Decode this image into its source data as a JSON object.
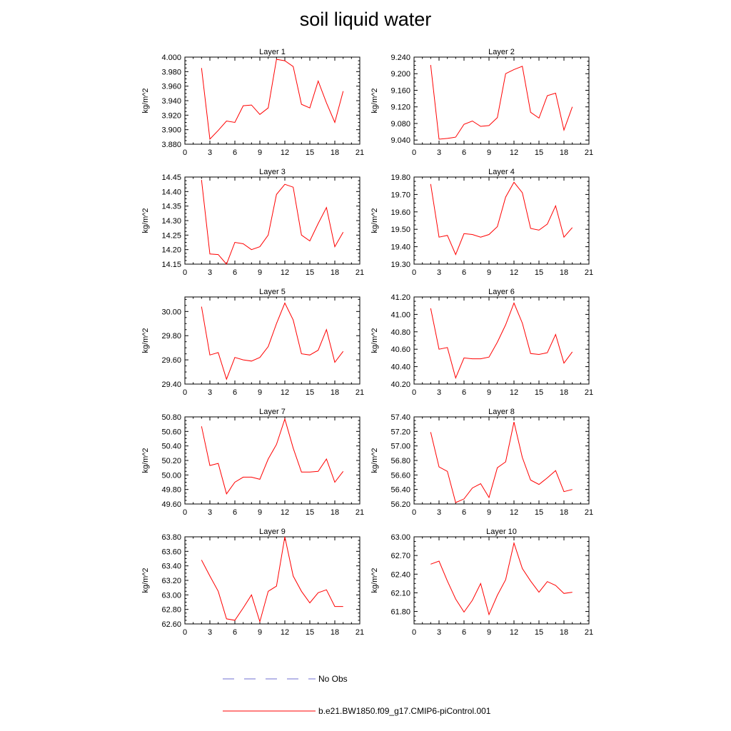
{
  "title": "soil liquid water",
  "legend": {
    "entries": [
      {
        "label": "No Obs",
        "color": "#6f6fd0",
        "style": "dashed"
      },
      {
        "label": "b.e21.BW1850.f09_g17.CMIP6-piControl.001",
        "color": "#ff0000",
        "style": "solid"
      }
    ]
  },
  "chart_data": [
    {
      "type": "line",
      "title": "Layer 1",
      "ylabel": "kg/m^2",
      "xlim": [
        0,
        21
      ],
      "xticks": [
        0,
        3,
        6,
        9,
        12,
        15,
        18,
        21
      ],
      "ylim": [
        3.88,
        4.0
      ],
      "yticks": [
        "3.880",
        "3.900",
        "3.920",
        "3.940",
        "3.960",
        "3.980",
        "4.000"
      ],
      "series": [
        {
          "name": "b.e21.BW1850.f09_g17.CMIP6-piControl.001",
          "color": "#ff0000",
          "x": [
            2,
            3,
            4,
            5,
            6,
            7,
            8,
            9,
            10,
            11,
            12,
            13,
            14,
            15,
            16,
            17,
            18,
            19
          ],
          "y": [
            3.985,
            3.887,
            3.899,
            3.912,
            3.91,
            3.933,
            3.934,
            3.921,
            3.93,
            3.997,
            3.995,
            3.987,
            3.935,
            3.93,
            3.967,
            3.937,
            3.91,
            3.953
          ]
        }
      ]
    },
    {
      "type": "line",
      "title": "Layer 2",
      "ylabel": "kg/m^2",
      "xlim": [
        0,
        21
      ],
      "xticks": [
        0,
        3,
        6,
        9,
        12,
        15,
        18,
        21
      ],
      "ylim": [
        9.03,
        9.24
      ],
      "yticks": [
        "9.040",
        "9.080",
        "9.120",
        "9.160",
        "9.200",
        "9.240"
      ],
      "series": [
        {
          "name": "b.e21.BW1850.f09_g17.CMIP6-piControl.001",
          "color": "#ff0000",
          "x": [
            2,
            3,
            4,
            5,
            6,
            7,
            8,
            9,
            10,
            11,
            12,
            13,
            14,
            15,
            16,
            17,
            18,
            19
          ],
          "y": [
            9.221,
            9.042,
            9.044,
            9.047,
            9.078,
            9.086,
            9.073,
            9.075,
            9.094,
            9.2,
            9.21,
            9.218,
            9.107,
            9.093,
            9.147,
            9.153,
            9.064,
            9.12
          ]
        }
      ]
    },
    {
      "type": "line",
      "title": "Layer 3",
      "ylabel": "kg/m^2",
      "xlim": [
        0,
        21
      ],
      "xticks": [
        0,
        3,
        6,
        9,
        12,
        15,
        18,
        21
      ],
      "ylim": [
        14.15,
        14.45
      ],
      "yticks": [
        "14.15",
        "14.20",
        "14.25",
        "14.30",
        "14.35",
        "14.40",
        "14.45"
      ],
      "series": [
        {
          "name": "b.e21.BW1850.f09_g17.CMIP6-piControl.001",
          "color": "#ff0000",
          "x": [
            2,
            3,
            4,
            5,
            6,
            7,
            8,
            9,
            10,
            11,
            12,
            13,
            14,
            15,
            16,
            17,
            18,
            19
          ],
          "y": [
            14.44,
            14.185,
            14.183,
            14.15,
            14.225,
            14.22,
            14.2,
            14.21,
            14.25,
            14.39,
            14.425,
            14.415,
            14.25,
            14.23,
            14.29,
            14.345,
            14.21,
            14.26
          ]
        }
      ]
    },
    {
      "type": "line",
      "title": "Layer 4",
      "ylabel": "kg/m^2",
      "xlim": [
        0,
        21
      ],
      "xticks": [
        0,
        3,
        6,
        9,
        12,
        15,
        18,
        21
      ],
      "ylim": [
        19.3,
        19.8
      ],
      "yticks": [
        "19.30",
        "19.40",
        "19.50",
        "19.60",
        "19.70",
        "19.80"
      ],
      "series": [
        {
          "name": "b.e21.BW1850.f09_g17.CMIP6-piControl.001",
          "color": "#ff0000",
          "x": [
            2,
            3,
            4,
            5,
            6,
            7,
            8,
            9,
            10,
            11,
            12,
            13,
            14,
            15,
            16,
            17,
            18,
            19
          ],
          "y": [
            19.76,
            19.455,
            19.465,
            19.355,
            19.475,
            19.47,
            19.455,
            19.47,
            19.515,
            19.685,
            19.77,
            19.71,
            19.505,
            19.495,
            19.53,
            19.635,
            19.455,
            19.51
          ]
        }
      ]
    },
    {
      "type": "line",
      "title": "Layer 5",
      "ylabel": "kg/m^2",
      "xlim": [
        0,
        21
      ],
      "xticks": [
        0,
        3,
        6,
        9,
        12,
        15,
        18,
        21
      ],
      "ylim": [
        29.4,
        30.12
      ],
      "yticks": [
        "29.40",
        "29.60",
        "29.80",
        "30.00"
      ],
      "series": [
        {
          "name": "b.e21.BW1850.f09_g17.CMIP6-piControl.001",
          "color": "#ff0000",
          "x": [
            2,
            3,
            4,
            5,
            6,
            7,
            8,
            9,
            10,
            11,
            12,
            13,
            14,
            15,
            16,
            17,
            18,
            19
          ],
          "y": [
            30.04,
            29.64,
            29.66,
            29.44,
            29.62,
            29.6,
            29.59,
            29.62,
            29.71,
            29.9,
            30.07,
            29.93,
            29.65,
            29.64,
            29.68,
            29.85,
            29.58,
            29.67
          ]
        }
      ]
    },
    {
      "type": "line",
      "title": "Layer 6",
      "ylabel": "kg/m^2",
      "xlim": [
        0,
        21
      ],
      "xticks": [
        0,
        3,
        6,
        9,
        12,
        15,
        18,
        21
      ],
      "ylim": [
        40.2,
        41.2
      ],
      "yticks": [
        "40.20",
        "40.40",
        "40.60",
        "40.80",
        "41.00",
        "41.20"
      ],
      "series": [
        {
          "name": "b.e21.BW1850.f09_g17.CMIP6-piControl.001",
          "color": "#ff0000",
          "x": [
            2,
            3,
            4,
            5,
            6,
            7,
            8,
            9,
            10,
            11,
            12,
            13,
            14,
            15,
            16,
            17,
            18,
            19
          ],
          "y": [
            41.07,
            40.6,
            40.62,
            40.27,
            40.5,
            40.49,
            40.49,
            40.51,
            40.68,
            40.88,
            41.13,
            40.9,
            40.55,
            40.54,
            40.56,
            40.77,
            40.44,
            40.57
          ]
        }
      ]
    },
    {
      "type": "line",
      "title": "Layer 7",
      "ylabel": "kg/m^2",
      "xlim": [
        0,
        21
      ],
      "xticks": [
        0,
        3,
        6,
        9,
        12,
        15,
        18,
        21
      ],
      "ylim": [
        49.6,
        50.8
      ],
      "yticks": [
        "49.60",
        "49.80",
        "50.00",
        "50.20",
        "50.40",
        "50.60",
        "50.80"
      ],
      "series": [
        {
          "name": "b.e21.BW1850.f09_g17.CMIP6-piControl.001",
          "color": "#ff0000",
          "x": [
            2,
            3,
            4,
            5,
            6,
            7,
            8,
            9,
            10,
            11,
            12,
            13,
            14,
            15,
            16,
            17,
            18,
            19
          ],
          "y": [
            50.67,
            50.13,
            50.16,
            49.74,
            49.9,
            49.97,
            49.97,
            49.94,
            50.22,
            50.42,
            50.77,
            50.37,
            50.04,
            50.04,
            50.05,
            50.22,
            49.9,
            50.05
          ]
        }
      ]
    },
    {
      "type": "line",
      "title": "Layer 8",
      "ylabel": "kg/m^2",
      "xlim": [
        0,
        21
      ],
      "xticks": [
        0,
        3,
        6,
        9,
        12,
        15,
        18,
        21
      ],
      "ylim": [
        56.2,
        57.4
      ],
      "yticks": [
        "56.20",
        "56.40",
        "56.60",
        "56.80",
        "57.00",
        "57.20",
        "57.40"
      ],
      "series": [
        {
          "name": "b.e21.BW1850.f09_g17.CMIP6-piControl.001",
          "color": "#ff0000",
          "x": [
            2,
            3,
            4,
            5,
            6,
            7,
            8,
            9,
            10,
            11,
            12,
            13,
            14,
            15,
            16,
            17,
            18,
            19
          ],
          "y": [
            57.19,
            56.71,
            56.65,
            56.22,
            56.27,
            56.42,
            56.48,
            56.29,
            56.7,
            56.78,
            57.33,
            56.84,
            56.53,
            56.47,
            56.56,
            56.66,
            56.37,
            56.4
          ]
        }
      ]
    },
    {
      "type": "line",
      "title": "Layer 9",
      "ylabel": "kg/m^2",
      "xlim": [
        0,
        21
      ],
      "xticks": [
        0,
        3,
        6,
        9,
        12,
        15,
        18,
        21
      ],
      "ylim": [
        62.6,
        63.8
      ],
      "yticks": [
        "62.60",
        "62.80",
        "63.00",
        "63.20",
        "63.40",
        "63.60",
        "63.80"
      ],
      "series": [
        {
          "name": "b.e21.BW1850.f09_g17.CMIP6-piControl.001",
          "color": "#ff0000",
          "x": [
            2,
            3,
            4,
            5,
            6,
            7,
            8,
            9,
            10,
            11,
            12,
            13,
            14,
            15,
            16,
            17,
            18,
            19
          ],
          "y": [
            63.48,
            63.26,
            63.05,
            62.67,
            62.65,
            62.82,
            63.0,
            62.63,
            63.05,
            63.12,
            63.8,
            63.26,
            63.05,
            62.89,
            63.03,
            63.07,
            62.84,
            62.84
          ]
        }
      ]
    },
    {
      "type": "line",
      "title": "Layer 10",
      "ylabel": "kg/m^2",
      "xlim": [
        0,
        21
      ],
      "xticks": [
        0,
        3,
        6,
        9,
        12,
        15,
        18,
        21
      ],
      "ylim": [
        61.6,
        63.0
      ],
      "yticks": [
        "61.80",
        "62.10",
        "62.40",
        "62.70",
        "63.00"
      ],
      "series": [
        {
          "name": "b.e21.BW1850.f09_g17.CMIP6-piControl.001",
          "color": "#ff0000",
          "x": [
            2,
            3,
            4,
            5,
            6,
            7,
            8,
            9,
            10,
            11,
            12,
            13,
            14,
            15,
            16,
            17,
            18,
            19
          ],
          "y": [
            62.56,
            62.61,
            62.29,
            62.0,
            61.79,
            61.98,
            62.25,
            61.75,
            62.06,
            62.31,
            62.9,
            62.49,
            62.29,
            62.11,
            62.28,
            62.22,
            62.09,
            62.11
          ]
        }
      ]
    }
  ]
}
